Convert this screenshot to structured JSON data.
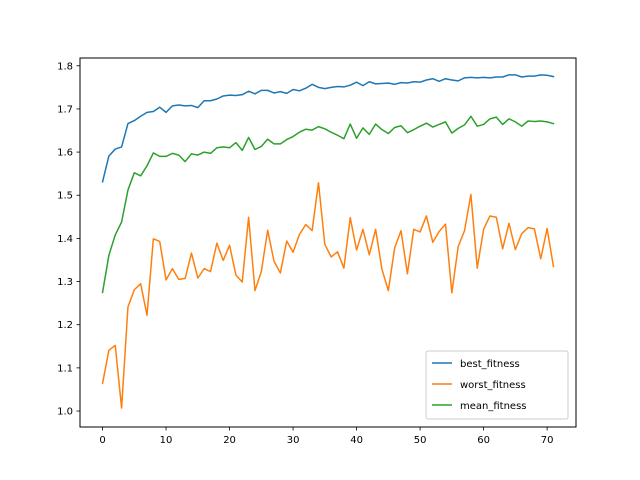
{
  "chart_data": {
    "type": "line",
    "title": "",
    "xlabel": "",
    "ylabel": "",
    "xlim": [
      -3.55,
      74.55
    ],
    "ylim": [
      0.963,
      1.818
    ],
    "xticks": [
      0,
      10,
      20,
      30,
      40,
      50,
      60,
      70
    ],
    "xtick_labels": [
      "0",
      "10",
      "20",
      "30",
      "40",
      "50",
      "60",
      "70"
    ],
    "yticks": [
      1.0,
      1.1,
      1.2,
      1.3,
      1.4,
      1.5,
      1.6,
      1.7,
      1.8
    ],
    "ytick_labels": [
      "1.0",
      "1.1",
      "1.2",
      "1.3",
      "1.4",
      "1.5",
      "1.6",
      "1.7",
      "1.8"
    ],
    "grid": false,
    "legend_position": "lower-right",
    "x": [
      0,
      1,
      2,
      3,
      4,
      5,
      6,
      7,
      8,
      9,
      10,
      11,
      12,
      13,
      14,
      15,
      16,
      17,
      18,
      19,
      20,
      21,
      22,
      23,
      24,
      25,
      26,
      27,
      28,
      29,
      30,
      31,
      32,
      33,
      34,
      35,
      36,
      37,
      38,
      39,
      40,
      41,
      42,
      43,
      44,
      45,
      46,
      47,
      48,
      49,
      50,
      51,
      52,
      53,
      54,
      55,
      56,
      57,
      58,
      59,
      60,
      61,
      62,
      63,
      64,
      65,
      66,
      67,
      68,
      69,
      70,
      71
    ],
    "series": [
      {
        "name": "best_fitness",
        "color": "#1f77b4",
        "values": [
          1.531,
          1.591,
          1.607,
          1.612,
          1.666,
          1.673,
          1.683,
          1.692,
          1.694,
          1.704,
          1.692,
          1.707,
          1.709,
          1.707,
          1.708,
          1.703,
          1.719,
          1.719,
          1.723,
          1.73,
          1.732,
          1.731,
          1.733,
          1.741,
          1.735,
          1.743,
          1.743,
          1.737,
          1.74,
          1.736,
          1.745,
          1.742,
          1.748,
          1.757,
          1.75,
          1.747,
          1.75,
          1.752,
          1.751,
          1.755,
          1.762,
          1.754,
          1.763,
          1.758,
          1.759,
          1.76,
          1.757,
          1.761,
          1.76,
          1.763,
          1.762,
          1.767,
          1.77,
          1.764,
          1.77,
          1.767,
          1.765,
          1.772,
          1.773,
          1.772,
          1.773,
          1.772,
          1.774,
          1.774,
          1.779,
          1.779,
          1.774,
          1.776,
          1.776,
          1.779,
          1.778,
          1.775
        ]
      },
      {
        "name": "worst_fitness",
        "color": "#ff7f0e",
        "values": [
          1.064,
          1.141,
          1.152,
          1.007,
          1.241,
          1.281,
          1.295,
          1.222,
          1.399,
          1.393,
          1.304,
          1.33,
          1.305,
          1.307,
          1.366,
          1.308,
          1.33,
          1.323,
          1.389,
          1.349,
          1.384,
          1.315,
          1.299,
          1.449,
          1.279,
          1.323,
          1.419,
          1.347,
          1.32,
          1.394,
          1.368,
          1.409,
          1.432,
          1.418,
          1.529,
          1.386,
          1.357,
          1.369,
          1.331,
          1.448,
          1.373,
          1.421,
          1.362,
          1.421,
          1.328,
          1.279,
          1.378,
          1.418,
          1.318,
          1.421,
          1.415,
          1.452,
          1.391,
          1.416,
          1.433,
          1.274,
          1.381,
          1.418,
          1.502,
          1.331,
          1.421,
          1.452,
          1.449,
          1.376,
          1.435,
          1.374,
          1.411,
          1.425,
          1.422,
          1.353,
          1.423,
          1.335
        ]
      },
      {
        "name": "mean_fitness",
        "color": "#2ca02c",
        "values": [
          1.275,
          1.361,
          1.408,
          1.438,
          1.512,
          1.552,
          1.545,
          1.568,
          1.598,
          1.59,
          1.59,
          1.597,
          1.593,
          1.578,
          1.596,
          1.593,
          1.6,
          1.597,
          1.61,
          1.612,
          1.61,
          1.622,
          1.604,
          1.634,
          1.606,
          1.613,
          1.63,
          1.619,
          1.619,
          1.629,
          1.636,
          1.646,
          1.653,
          1.651,
          1.659,
          1.654,
          1.646,
          1.639,
          1.631,
          1.665,
          1.632,
          1.656,
          1.641,
          1.665,
          1.652,
          1.643,
          1.657,
          1.661,
          1.645,
          1.652,
          1.66,
          1.667,
          1.658,
          1.664,
          1.67,
          1.644,
          1.655,
          1.663,
          1.683,
          1.66,
          1.664,
          1.677,
          1.681,
          1.664,
          1.677,
          1.67,
          1.66,
          1.672,
          1.671,
          1.672,
          1.67,
          1.666
        ]
      }
    ]
  }
}
